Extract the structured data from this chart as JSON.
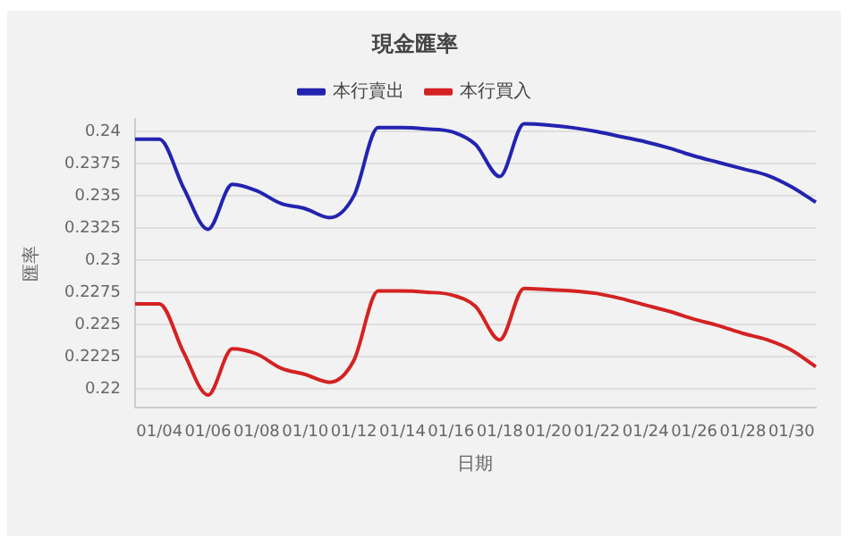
{
  "chart_data": {
    "type": "line",
    "title": "現金匯率",
    "xlabel": "日期",
    "ylabel": "匯率",
    "categories": [
      null,
      "01/04",
      null,
      "01/06",
      null,
      "01/08",
      null,
      "01/10",
      null,
      "01/12",
      null,
      "01/14",
      null,
      "01/16",
      null,
      "01/18",
      null,
      "01/20",
      null,
      "01/22",
      null,
      "01/24",
      null,
      "01/26",
      null,
      "01/28",
      null,
      "01/30",
      null
    ],
    "series": [
      {
        "name": "本行賣出",
        "color": "#2323b0",
        "values": [
          0.2394,
          0.2394,
          0.2356,
          0.2324,
          0.2359,
          0.2354,
          0.2344,
          0.234,
          0.2333,
          0.235,
          0.2403,
          0.2403,
          0.2402,
          0.24,
          0.239,
          0.2365,
          0.2406,
          0.2405,
          0.2403,
          0.24,
          0.2396,
          0.2392,
          0.2387,
          0.2381,
          0.2376,
          0.2371,
          0.2366,
          0.2357,
          0.2345
        ]
      },
      {
        "name": "本行買入",
        "color": "#d42222",
        "values": [
          0.2266,
          0.2266,
          0.2228,
          0.2195,
          0.2231,
          0.2227,
          0.2216,
          0.2211,
          0.2205,
          0.2222,
          0.2276,
          0.2276,
          0.2275,
          0.2273,
          0.2264,
          0.2238,
          0.2278,
          0.2277,
          0.2276,
          0.2274,
          0.227,
          0.2265,
          0.226,
          0.2254,
          0.2249,
          0.2243,
          0.2238,
          0.223,
          0.2217
        ]
      }
    ],
    "ylim": [
      0.2185,
      0.241
    ],
    "yticks": [
      0.22,
      0.2225,
      0.225,
      0.2275,
      0.23,
      0.2325,
      0.235,
      0.2375,
      0.24
    ],
    "grid": "y",
    "legend": "top",
    "marker": "none",
    "line_style": "solid"
  }
}
